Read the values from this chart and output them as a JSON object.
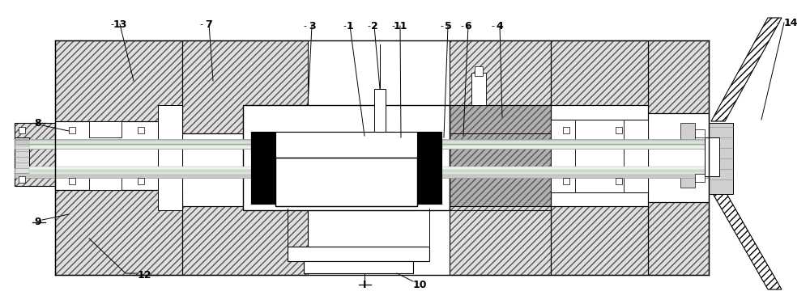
{
  "bg_color": "#ffffff",
  "lc": "#000000",
  "fig_width": 10.0,
  "fig_height": 3.76,
  "hatch_fc": "#e0e0e0",
  "hatch_lt": "////",
  "hatch_rt": "\\\\\\\\",
  "gray_fc": "#b0b0b0"
}
